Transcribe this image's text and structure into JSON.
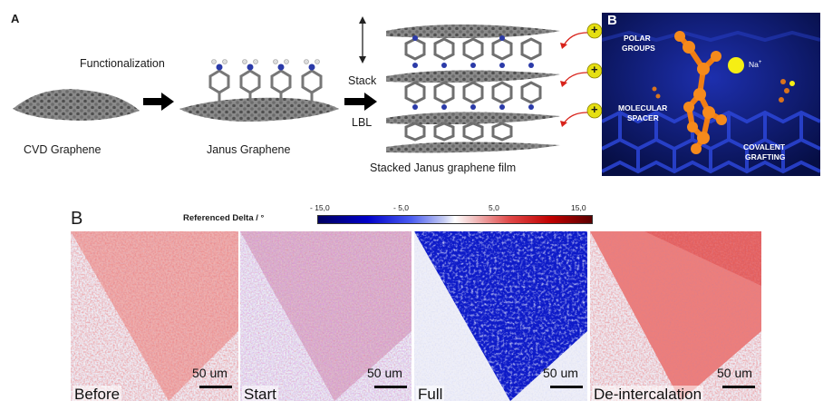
{
  "panel_a": {
    "letter": "A",
    "step_label": "Functionalization",
    "stack_label": "Stack",
    "lbl_label": "LBL",
    "captions": [
      "CVD Graphene",
      "Janus Graphene",
      "Stacked Janus graphene film"
    ],
    "ion_symbol": "+"
  },
  "panel_b_inset": {
    "letter": "B",
    "labels": {
      "polar_groups_1": "POLAR",
      "polar_groups_2": "GROUPS",
      "ion": "Na",
      "ion_sup": "+",
      "spacer_1": "MOLECULAR",
      "spacer_2": "SPACER",
      "grafting_1": "COVALENT",
      "grafting_2": "GRAFTING"
    },
    "colors": {
      "background": "#0b1a6b",
      "molecule": "#f07d12",
      "ion": "#f5ee14"
    }
  },
  "panel_b": {
    "letter": "B",
    "colorbar_title": "Referenced Delta / °",
    "colorbar_ticks": [
      "- 15,0",
      "- 5,0",
      "5,0",
      "15,0"
    ],
    "scale_text": "50 um",
    "images": [
      {
        "label": "Before",
        "state": "before"
      },
      {
        "label": "Start",
        "state": "start"
      },
      {
        "label": "Full",
        "state": "full"
      },
      {
        "label": "De-intercalation",
        "state": "deint"
      }
    ],
    "colors": {
      "negative": "#00008b",
      "positive": "#8b0000",
      "zero": "#ffffff"
    }
  }
}
